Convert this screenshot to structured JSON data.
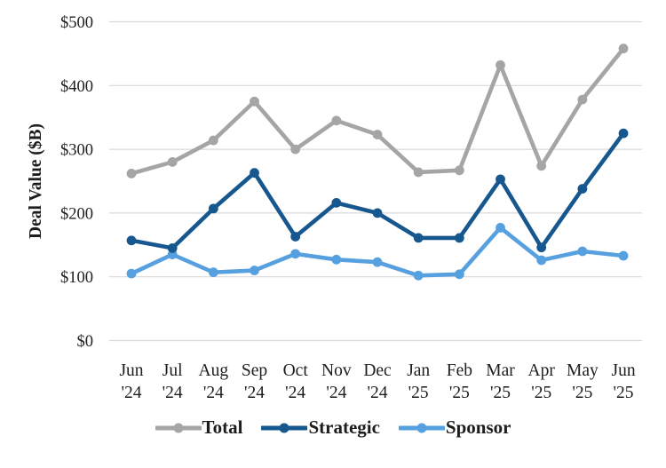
{
  "chart_data": {
    "type": "line",
    "title": "",
    "xlabel": "",
    "ylabel": "Deal Value ($B)",
    "ylim": [
      0,
      500
    ],
    "ytick_interval": 100,
    "ytick_labels": [
      "$0",
      "$100",
      "$200",
      "$300",
      "$400",
      "$500"
    ],
    "grid": "horizontal-only",
    "legend_position": "bottom-center",
    "categories": [
      {
        "month": "Jun",
        "year": "'24"
      },
      {
        "month": "Jul",
        "year": "'24"
      },
      {
        "month": "Aug",
        "year": "'24"
      },
      {
        "month": "Sep",
        "year": "'24"
      },
      {
        "month": "Oct",
        "year": "'24"
      },
      {
        "month": "Nov",
        "year": "'24"
      },
      {
        "month": "Dec",
        "year": "'24"
      },
      {
        "month": "Jan",
        "year": "'25"
      },
      {
        "month": "Feb",
        "year": "'25"
      },
      {
        "month": "Mar",
        "year": "'25"
      },
      {
        "month": "Apr",
        "year": "'25"
      },
      {
        "month": "May",
        "year": "'25"
      },
      {
        "month": "Jun",
        "year": "'25"
      }
    ],
    "series": [
      {
        "name": "Total",
        "color": "#A5A5A5",
        "values": [
          262,
          280,
          314,
          375,
          300,
          345,
          323,
          264,
          267,
          432,
          274,
          378,
          458
        ]
      },
      {
        "name": "Strategic",
        "color": "#17578F",
        "values": [
          157,
          145,
          207,
          263,
          163,
          216,
          200,
          161,
          161,
          253,
          146,
          238,
          325
        ]
      },
      {
        "name": "Sponsor",
        "color": "#56A0DF",
        "values": [
          105,
          135,
          107,
          110,
          136,
          127,
          123,
          102,
          104,
          177,
          126,
          140,
          133
        ]
      }
    ],
    "colors": {
      "gridline": "#D9D9D9",
      "text": "#1D1D1D"
    }
  }
}
